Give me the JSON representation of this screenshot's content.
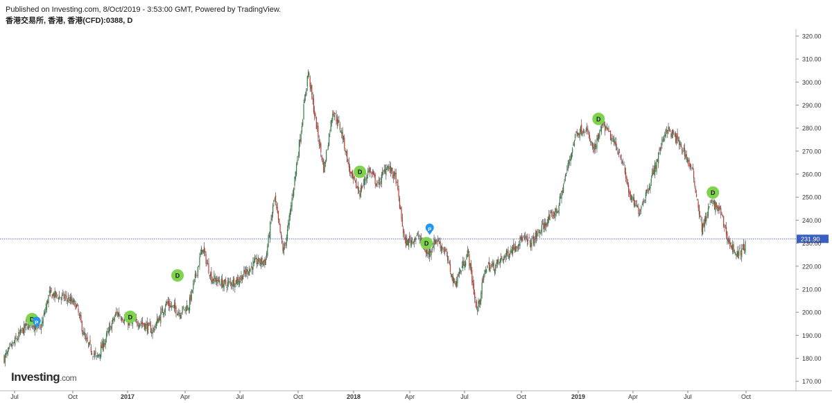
{
  "header": {
    "published": "Published on Investing.com, 8/Oct/2019 - 3:53:00 GMT, Powered by TradingView.",
    "symbol": "香港交易所, 香港, 香港(CFD):0388, D"
  },
  "logo": {
    "brand": "Investing",
    "suffix": ".com"
  },
  "colors": {
    "up": "#2a7d3e",
    "down": "#c0392b",
    "wick": "#333333",
    "badge": "#7fd34e",
    "pin": "#2196f3",
    "price_line": "#3b5fc0",
    "price_label_bg": "#3b5fc0"
  },
  "chart_data": {
    "type": "candlestick",
    "ylim": [
      166,
      323
    ],
    "y_ticks": [
      "320.00",
      "310.00",
      "300.00",
      "290.00",
      "280.00",
      "270.00",
      "260.00",
      "250.00",
      "240.00",
      "230.00",
      "220.00",
      "210.00",
      "200.00",
      "190.00",
      "180.00",
      "170.00"
    ],
    "x_ticks": [
      "Jul",
      "Oct",
      "2017",
      "Apr",
      "Jul",
      "Oct",
      "2018",
      "Apr",
      "Jul",
      "Oct",
      "2019",
      "Apr",
      "Jul",
      "Oct"
    ],
    "last_price": 231.9,
    "last_price_label": "231.90",
    "trend_points": [
      [
        0,
        180
      ],
      [
        0.04,
        192
      ],
      [
        0.06,
        196
      ],
      [
        0.08,
        192
      ],
      [
        0.1,
        208
      ],
      [
        0.14,
        206
      ],
      [
        0.16,
        203
      ],
      [
        0.18,
        188
      ],
      [
        0.205,
        180
      ],
      [
        0.22,
        186
      ],
      [
        0.25,
        200
      ],
      [
        0.28,
        195
      ],
      [
        0.3,
        196
      ],
      [
        0.33,
        192
      ],
      [
        0.36,
        204
      ],
      [
        0.39,
        200
      ],
      [
        0.41,
        203
      ],
      [
        0.44,
        228
      ],
      [
        0.46,
        215
      ],
      [
        0.49,
        212
      ],
      [
        0.52,
        214
      ],
      [
        0.56,
        222
      ],
      [
        0.58,
        222
      ],
      [
        0.6,
        250
      ],
      [
        0.62,
        226
      ],
      [
        0.63,
        236
      ],
      [
        0.66,
        280
      ],
      [
        0.675,
        305
      ],
      [
        0.69,
        285
      ],
      [
        0.71,
        262
      ],
      [
        0.73,
        288
      ],
      [
        0.75,
        278
      ],
      [
        0.77,
        259
      ],
      [
        0.79,
        252
      ],
      [
        0.81,
        262
      ],
      [
        0.83,
        255
      ],
      [
        0.85,
        264
      ],
      [
        0.87,
        258
      ],
      [
        0.89,
        230
      ],
      [
        0.92,
        233
      ],
      [
        0.94,
        225
      ],
      [
        0.96,
        232
      ],
      [
        0.98,
        226
      ],
      [
        1.0,
        212
      ],
      [
        1.03,
        226
      ],
      [
        1.05,
        200
      ],
      [
        1.07,
        220
      ],
      [
        1.09,
        220
      ],
      [
        1.12,
        226
      ],
      [
        1.15,
        232
      ],
      [
        1.17,
        230
      ],
      [
        1.2,
        238
      ],
      [
        1.23,
        245
      ],
      [
        1.25,
        262
      ],
      [
        1.27,
        278
      ],
      [
        1.29,
        280
      ],
      [
        1.31,
        270
      ],
      [
        1.33,
        282
      ],
      [
        1.35,
        275
      ],
      [
        1.37,
        268
      ],
      [
        1.39,
        250
      ],
      [
        1.41,
        244
      ],
      [
        1.43,
        254
      ],
      [
        1.45,
        266
      ],
      [
        1.47,
        280
      ],
      [
        1.49,
        276
      ],
      [
        1.51,
        270
      ],
      [
        1.53,
        260
      ],
      [
        1.55,
        236
      ],
      [
        1.57,
        248
      ],
      [
        1.59,
        244
      ],
      [
        1.61,
        230
      ],
      [
        1.63,
        225
      ],
      [
        1.646,
        229
      ]
    ],
    "events": [
      {
        "label": "D",
        "kind": "dividend",
        "t": 0.062,
        "price": 197
      },
      {
        "label": "P",
        "kind": "pin",
        "t": 0.072,
        "price": 195.5
      },
      {
        "label": "D",
        "kind": "dividend",
        "t": 0.28,
        "price": 198
      },
      {
        "label": "D",
        "kind": "dividend",
        "t": 0.385,
        "price": 216
      },
      {
        "label": "D",
        "kind": "dividend",
        "t": 0.79,
        "price": 261
      },
      {
        "label": "D",
        "kind": "dividend",
        "t": 0.938,
        "price": 230
      },
      {
        "label": "P",
        "kind": "pin",
        "t": 0.945,
        "price": 236
      },
      {
        "label": "D",
        "kind": "dividend",
        "t": 1.32,
        "price": 284
      },
      {
        "label": "D",
        "kind": "dividend",
        "t": 1.574,
        "price": 252
      }
    ]
  }
}
